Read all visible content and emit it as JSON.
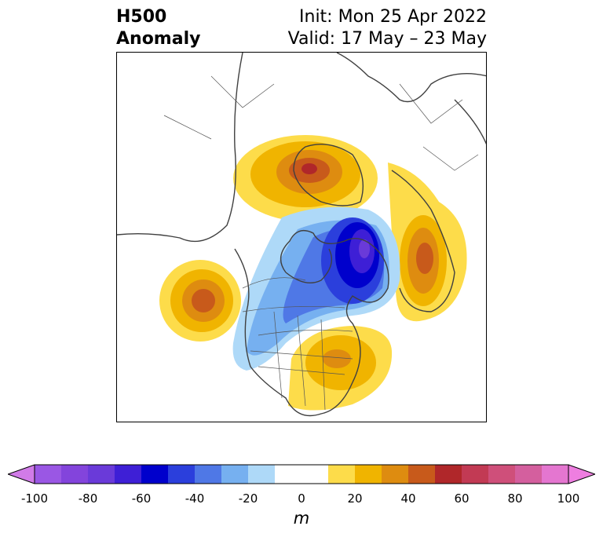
{
  "title": {
    "left_line1": "H500",
    "left_line2": "Anomaly",
    "right_line1": "Init: Mon 25 Apr 2022",
    "right_line2": "Valid: 17 May – 23 May"
  },
  "map": {
    "projection": "polar stereographic (North America)",
    "features": [
      "coastlines",
      "country borders",
      "US state borders",
      "Canadian provinces"
    ],
    "anomaly_centers": [
      {
        "region": "Greenland",
        "sign": "positive",
        "peak_m": 60
      },
      {
        "region": "Hudson Bay / northern Canada",
        "sign": "negative",
        "peak_m": -70
      },
      {
        "region": "northeast Pacific",
        "sign": "positive",
        "peak_m": 50
      },
      {
        "region": "eastern United States",
        "sign": "positive",
        "peak_m": 30
      },
      {
        "region": "northern Europe / Scandinavia",
        "sign": "positive",
        "peak_m": 50
      },
      {
        "region": "central Canada to US Plains",
        "sign": "negative",
        "peak_m": -40
      }
    ]
  },
  "colorbar": {
    "unit": "m",
    "tick_labels": [
      "-100",
      "-80",
      "-60",
      "-40",
      "-20",
      "0",
      "20",
      "40",
      "60",
      "80",
      "100"
    ],
    "bins": [
      {
        "lo": -100,
        "hi": -90,
        "color": "#9a57e4"
      },
      {
        "lo": -90,
        "hi": -80,
        "color": "#8344dc"
      },
      {
        "lo": -80,
        "hi": -70,
        "color": "#6a3ad9"
      },
      {
        "lo": -70,
        "hi": -60,
        "color": "#3e1fd6"
      },
      {
        "lo": -60,
        "hi": -50,
        "color": "#0000cc"
      },
      {
        "lo": -50,
        "hi": -40,
        "color": "#2b3fdc"
      },
      {
        "lo": -40,
        "hi": -30,
        "color": "#4f78e6"
      },
      {
        "lo": -30,
        "hi": -20,
        "color": "#76b0f0"
      },
      {
        "lo": -20,
        "hi": -10,
        "color": "#aed9f8"
      },
      {
        "lo": -10,
        "hi": 10,
        "color": "#ffffff"
      },
      {
        "lo": 10,
        "hi": 20,
        "color": "#fddc4a"
      },
      {
        "lo": 20,
        "hi": 30,
        "color": "#f0b400"
      },
      {
        "lo": 30,
        "hi": 40,
        "color": "#de8c10"
      },
      {
        "lo": 40,
        "hi": 50,
        "color": "#c85a1b"
      },
      {
        "lo": 50,
        "hi": 60,
        "color": "#b0272a"
      },
      {
        "lo": 60,
        "hi": 70,
        "color": "#c23a54"
      },
      {
        "lo": 70,
        "hi": 80,
        "color": "#cf4f7a"
      },
      {
        "lo": 80,
        "hi": 90,
        "color": "#d45f9e"
      },
      {
        "lo": 90,
        "hi": 100,
        "color": "#e476d0"
      }
    ],
    "under_color": "#d17be8",
    "over_color": "#ee7ee0"
  }
}
